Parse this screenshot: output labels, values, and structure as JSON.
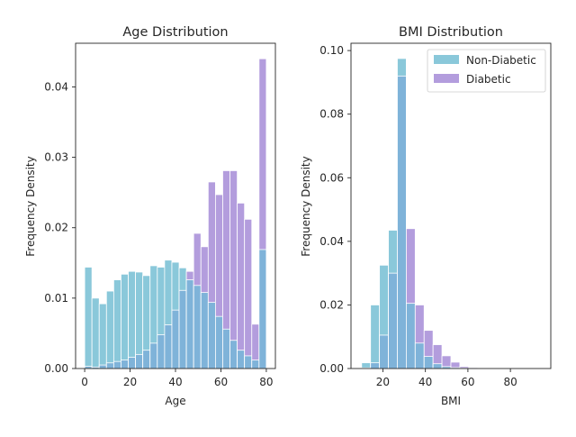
{
  "colors": {
    "non_diabetic": "#8ac8da",
    "diabetic": "#b39ddd",
    "overlap": "#7fb3d9",
    "axes": "#262626"
  },
  "chart_data": [
    {
      "type": "histogram",
      "title": "Age Distribution",
      "xlabel": "Age",
      "ylabel": "Frequency Density",
      "xlim": [
        -4,
        84
      ],
      "ylim": [
        0,
        0.0462
      ],
      "xticks": [
        0,
        20,
        40,
        60,
        80
      ],
      "yticks": [
        0.0,
        0.01,
        0.02,
        0.03,
        0.04
      ],
      "ytick_labels": [
        "0.00",
        "0.01",
        "0.02",
        "0.03",
        "0.04"
      ],
      "bin_edges": [
        0,
        3.2,
        6.4,
        9.6,
        12.8,
        16,
        19.2,
        22.4,
        25.6,
        28.8,
        32,
        35.2,
        38.4,
        41.6,
        44.8,
        48,
        51.2,
        54.4,
        57.6,
        60.8,
        64,
        67.2,
        70.4,
        73.6,
        76.8,
        80
      ],
      "series": [
        {
          "name": "Non-Diabetic",
          "values": [
            0.0144,
            0.01,
            0.0092,
            0.011,
            0.0126,
            0.0134,
            0.0138,
            0.0137,
            0.0132,
            0.0146,
            0.0144,
            0.0154,
            0.0151,
            0.0143,
            0.0126,
            0.0118,
            0.0108,
            0.0094,
            0.0074,
            0.0056,
            0.004,
            0.0026,
            0.0018,
            0.0012,
            0.0169
          ]
        },
        {
          "name": "Diabetic",
          "values": [
            0.0003,
            0.0002,
            0.0005,
            0.0008,
            0.001,
            0.0012,
            0.0016,
            0.002,
            0.0026,
            0.0036,
            0.0048,
            0.0062,
            0.0083,
            0.0111,
            0.0138,
            0.0192,
            0.0173,
            0.0265,
            0.0247,
            0.0281,
            0.0281,
            0.0235,
            0.0212,
            0.0063,
            0.044
          ]
        }
      ]
    },
    {
      "type": "histogram",
      "title": "BMI Distribution",
      "xlabel": "BMI",
      "ylabel": "Frequency Density",
      "xlim": [
        5,
        99
      ],
      "ylim": [
        0,
        0.1023
      ],
      "xticks": [
        20,
        40,
        60,
        80
      ],
      "yticks": [
        0.0,
        0.02,
        0.04,
        0.06,
        0.08,
        0.1
      ],
      "ytick_labels": [
        "0.00",
        "0.02",
        "0.04",
        "0.06",
        "0.08",
        "0.10"
      ],
      "bin_edges": [
        10,
        14.2,
        18.4,
        22.6,
        26.8,
        31,
        35.2,
        39.4,
        43.6,
        47.8,
        52,
        56.2,
        60.4,
        64.6,
        68.8,
        73,
        77.2,
        81.4,
        85.6,
        89.8,
        94
      ],
      "series": [
        {
          "name": "Non-Diabetic",
          "values": [
            0.0018,
            0.02,
            0.0325,
            0.0435,
            0.0975,
            0.0205,
            0.008,
            0.0038,
            0.0015,
            0.0006,
            0.0003,
            0.0001,
            0.0001,
            0.0,
            0.0,
            0.0,
            0.0,
            0.0,
            0.0,
            0.0
          ]
        },
        {
          "name": "Diabetic",
          "values": [
            0.0002,
            0.0018,
            0.0105,
            0.03,
            0.092,
            0.044,
            0.02,
            0.012,
            0.0075,
            0.004,
            0.002,
            0.0006,
            0.0003,
            0.0001,
            0.0,
            0.0,
            0.0,
            0.0,
            0.0,
            0.0
          ]
        }
      ],
      "legend": {
        "position": "upper-right",
        "entries": [
          "Non-Diabetic",
          "Diabetic"
        ]
      }
    }
  ]
}
